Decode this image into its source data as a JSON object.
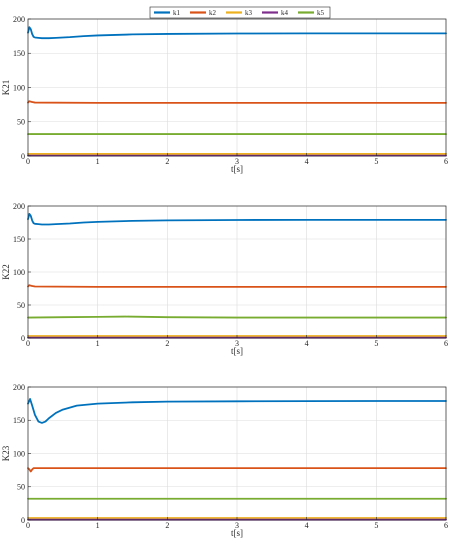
{
  "legend": {
    "placement": "top-center",
    "entries": [
      {
        "label": "k1",
        "color": "#0072BD"
      },
      {
        "label": "k2",
        "color": "#D95319"
      },
      {
        "label": "k3",
        "color": "#EDB120"
      },
      {
        "label": "k4",
        "color": "#7E2F8E"
      },
      {
        "label": "k5",
        "color": "#77AC30"
      }
    ]
  },
  "chart_data": [
    {
      "type": "line",
      "ylabel": "K21",
      "xlabel": "t[s]",
      "xlim": [
        0,
        6
      ],
      "ylim": [
        0,
        200
      ],
      "xticks": [
        0,
        1,
        2,
        3,
        4,
        5,
        6
      ],
      "yticks": [
        0,
        50,
        100,
        150,
        200
      ],
      "grid": true,
      "series": [
        {
          "name": "k1",
          "color": "#0072BD",
          "x": [
            0,
            0.02,
            0.04,
            0.06,
            0.08,
            0.1,
            0.15,
            0.2,
            0.3,
            0.4,
            0.6,
            0.8,
            1,
            1.5,
            2,
            3,
            4,
            5,
            6
          ],
          "y": [
            180,
            188,
            185,
            178,
            174,
            173,
            172.5,
            172,
            172,
            172.5,
            173.5,
            175,
            176,
            177.5,
            178.2,
            178.8,
            179,
            179,
            179
          ]
        },
        {
          "name": "k2",
          "color": "#D95319",
          "x": [
            0,
            0.02,
            0.05,
            0.1,
            1,
            2,
            3,
            4,
            5,
            6
          ],
          "y": [
            78,
            80,
            79,
            78,
            77.5,
            77.5,
            77.5,
            77.5,
            77.5,
            77.5
          ]
        },
        {
          "name": "k3",
          "color": "#EDB120",
          "x": [
            0,
            1,
            2,
            3,
            4,
            5,
            6
          ],
          "y": [
            3,
            3,
            3,
            3,
            3,
            3,
            3
          ]
        },
        {
          "name": "k4",
          "color": "#7E2F8E",
          "x": [
            0,
            1,
            2,
            3,
            4,
            5,
            6
          ],
          "y": [
            0.5,
            0.5,
            0.5,
            0.5,
            0.5,
            0.5,
            0.5
          ]
        },
        {
          "name": "k5",
          "color": "#77AC30",
          "x": [
            0,
            1,
            2,
            3,
            4,
            5,
            6
          ],
          "y": [
            32,
            32,
            32,
            32,
            32,
            32,
            32
          ]
        }
      ]
    },
    {
      "type": "line",
      "ylabel": "K22",
      "xlabel": "t[s]",
      "xlim": [
        0,
        6
      ],
      "ylim": [
        0,
        200
      ],
      "xticks": [
        0,
        1,
        2,
        3,
        4,
        5,
        6
      ],
      "yticks": [
        0,
        50,
        100,
        150,
        200
      ],
      "grid": true,
      "series": [
        {
          "name": "k1",
          "color": "#0072BD",
          "x": [
            0,
            0.02,
            0.04,
            0.06,
            0.08,
            0.1,
            0.15,
            0.2,
            0.3,
            0.4,
            0.6,
            0.8,
            1,
            1.5,
            2,
            3,
            4,
            5,
            6
          ],
          "y": [
            180,
            188,
            185,
            178,
            174,
            173,
            172.5,
            172,
            172,
            172.5,
            173.5,
            175,
            176,
            177.5,
            178.2,
            178.8,
            179,
            179,
            179
          ]
        },
        {
          "name": "k2",
          "color": "#D95319",
          "x": [
            0,
            0.02,
            0.05,
            0.1,
            1,
            2,
            3,
            4,
            5,
            6
          ],
          "y": [
            78,
            80,
            79,
            78,
            77.5,
            77.5,
            77.5,
            77.5,
            77.5,
            77.5
          ]
        },
        {
          "name": "k3",
          "color": "#EDB120",
          "x": [
            0,
            1,
            2,
            3,
            4,
            5,
            6
          ],
          "y": [
            3,
            3,
            3,
            3,
            3,
            3,
            3
          ]
        },
        {
          "name": "k4",
          "color": "#7E2F8E",
          "x": [
            0,
            1,
            2,
            3,
            4,
            5,
            6
          ],
          "y": [
            0.5,
            0.5,
            0.5,
            0.5,
            0.5,
            0.5,
            0.5
          ]
        },
        {
          "name": "k5",
          "color": "#77AC30",
          "x": [
            0,
            0.5,
            1,
            1.4,
            2,
            3,
            4,
            5,
            6
          ],
          "y": [
            31,
            31.5,
            32,
            32.5,
            31.5,
            31,
            31,
            31,
            31
          ]
        }
      ]
    },
    {
      "type": "line",
      "ylabel": "K23",
      "xlabel": "t[s]",
      "xlim": [
        0,
        6
      ],
      "ylim": [
        0,
        200
      ],
      "xticks": [
        0,
        1,
        2,
        3,
        4,
        5,
        6
      ],
      "yticks": [
        0,
        50,
        100,
        150,
        200
      ],
      "grid": true,
      "series": [
        {
          "name": "k1",
          "color": "#0072BD",
          "x": [
            0,
            0.03,
            0.06,
            0.1,
            0.15,
            0.2,
            0.25,
            0.3,
            0.4,
            0.5,
            0.7,
            1,
            1.5,
            2,
            3,
            4,
            5,
            6
          ],
          "y": [
            175,
            182,
            172,
            158,
            148,
            146,
            148,
            153,
            161,
            166,
            172,
            175,
            177,
            178,
            178.5,
            178.8,
            179,
            179
          ]
        },
        {
          "name": "k2",
          "color": "#D95319",
          "x": [
            0,
            0.02,
            0.04,
            0.06,
            0.08,
            0.1,
            0.2,
            1,
            2,
            3,
            4,
            5,
            6
          ],
          "y": [
            78,
            76,
            73,
            76,
            78,
            78,
            78,
            78,
            78,
            78,
            78,
            78,
            78
          ]
        },
        {
          "name": "k3",
          "color": "#EDB120",
          "x": [
            0,
            1,
            2,
            3,
            4,
            5,
            6
          ],
          "y": [
            3,
            3,
            3,
            3,
            3,
            3,
            3
          ]
        },
        {
          "name": "k4",
          "color": "#7E2F8E",
          "x": [
            0,
            1,
            2,
            3,
            4,
            5,
            6
          ],
          "y": [
            0.5,
            0.5,
            0.5,
            0.5,
            0.5,
            0.5,
            0.5
          ]
        },
        {
          "name": "k5",
          "color": "#77AC30",
          "x": [
            0,
            1,
            2,
            3,
            4,
            5,
            6
          ],
          "y": [
            32,
            32,
            32,
            32,
            32,
            32,
            32
          ]
        }
      ]
    }
  ]
}
